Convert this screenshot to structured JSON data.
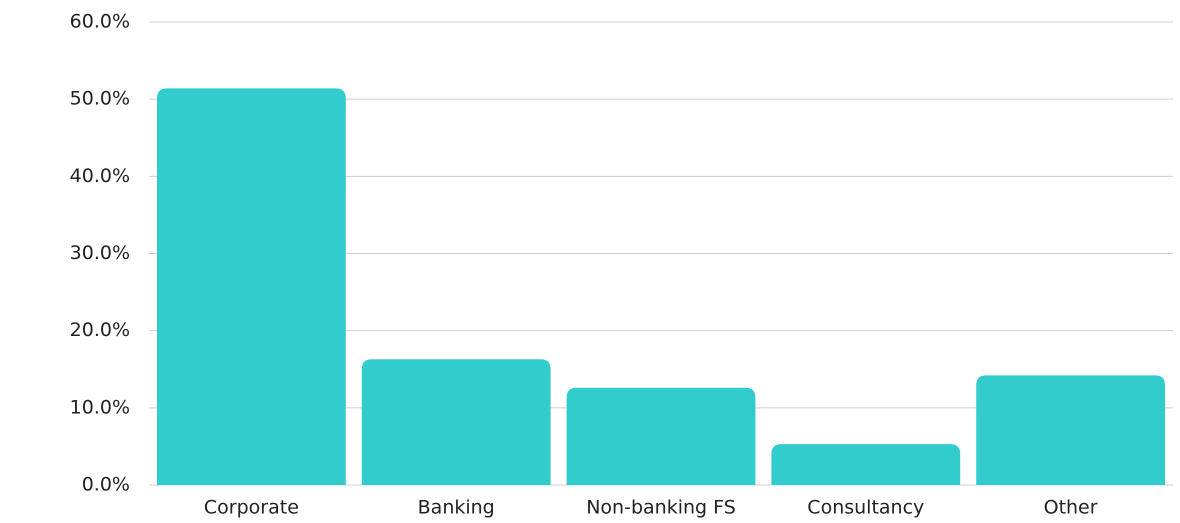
{
  "chart_data": {
    "type": "bar",
    "categories": [
      "Corporate",
      "Banking",
      "Non-banking FS",
      "Consultancy",
      "Other"
    ],
    "values": [
      51.4,
      16.3,
      12.6,
      5.3,
      14.2
    ],
    "color": "#33cccc",
    "ylim": [
      0,
      60
    ],
    "yticks": [
      {
        "value": 0,
        "label": "0.0%"
      },
      {
        "value": 10,
        "label": "10.0%"
      },
      {
        "value": 20,
        "label": "20.0%"
      },
      {
        "value": 30,
        "label": "30.0%"
      },
      {
        "value": 40,
        "label": "40.0%"
      },
      {
        "value": 50,
        "label": "50.0%"
      },
      {
        "value": 60,
        "label": "60.0%"
      }
    ],
    "grid": true
  }
}
